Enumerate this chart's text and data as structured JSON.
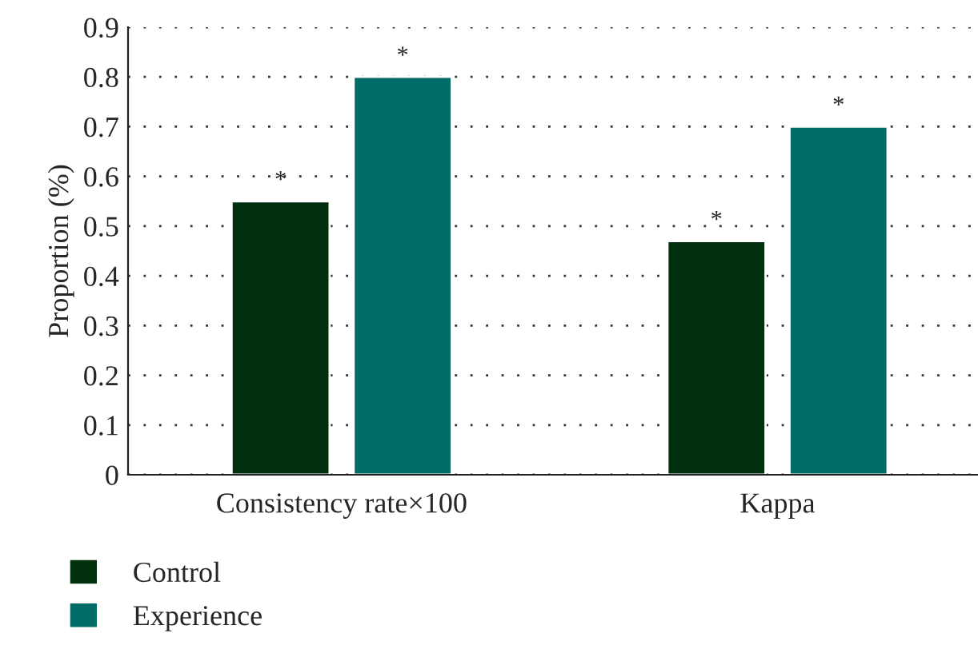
{
  "chart_data": {
    "type": "bar",
    "ylabel": "Proportion (%)",
    "categories": [
      "Consistency rate×100",
      "Kappa"
    ],
    "series": [
      {
        "name": "Control",
        "color": "#01300f",
        "values": [
          0.55,
          0.47
        ]
      },
      {
        "name": "Experience",
        "color": "#016b67",
        "values": [
          0.8,
          0.7
        ]
      }
    ],
    "ylim": [
      0,
      0.9
    ],
    "yticks": [
      0,
      0.1,
      0.2,
      0.3,
      0.4,
      0.5,
      0.6,
      0.7,
      0.8,
      0.9
    ],
    "grid": "y",
    "legend": "bottom left",
    "annotations": [
      "*",
      "*",
      "*",
      "*"
    ]
  }
}
